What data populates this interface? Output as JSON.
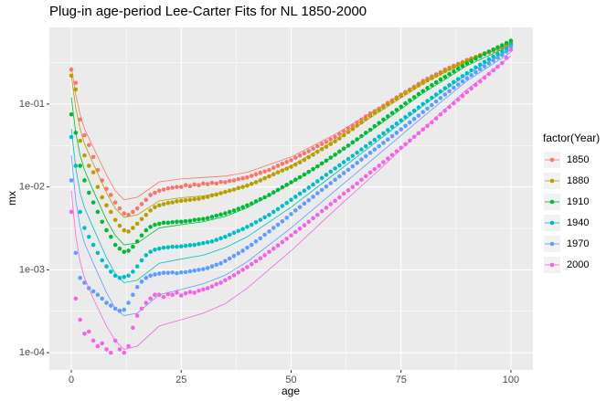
{
  "chart_data": {
    "type": "scatter",
    "title": "Plug-in age-period Lee-Carter Fits for NL 1850-2000",
    "x_label": "age",
    "y_label": "mx",
    "legend_title": "factor(Year)",
    "legend_position": "right",
    "log_y": true,
    "grid": true,
    "xlim": [
      -5,
      105
    ],
    "ylim": [
      6.2e-05,
      0.84
    ],
    "xticks": [
      0,
      25,
      50,
      75,
      100
    ],
    "yticks": [
      {
        "value": 0.0001,
        "label": "1e-04"
      },
      {
        "value": 0.001,
        "label": "1e-03"
      },
      {
        "value": 0.01,
        "label": "1e-02"
      },
      {
        "value": 0.1,
        "label": "1e-01"
      }
    ],
    "x": [
      0,
      1,
      2,
      3,
      4,
      5,
      6,
      7,
      8,
      9,
      10,
      11,
      12,
      13,
      14,
      15,
      16,
      17,
      18,
      19,
      20,
      21,
      22,
      23,
      24,
      25,
      26,
      27,
      28,
      29,
      30,
      31,
      32,
      33,
      34,
      35,
      36,
      37,
      38,
      39,
      40,
      41,
      42,
      43,
      44,
      45,
      46,
      47,
      48,
      49,
      50,
      51,
      52,
      53,
      54,
      55,
      56,
      57,
      58,
      59,
      60,
      61,
      62,
      63,
      64,
      65,
      66,
      67,
      68,
      69,
      70,
      71,
      72,
      73,
      74,
      75,
      76,
      77,
      78,
      79,
      80,
      81,
      82,
      83,
      84,
      85,
      86,
      87,
      88,
      89,
      90,
      91,
      92,
      93,
      94,
      95,
      96,
      97,
      98,
      99,
      100
    ],
    "fit_x": [
      0,
      1,
      2,
      3,
      5,
      8,
      10,
      12,
      15,
      20,
      25,
      30,
      35,
      40,
      50,
      60,
      70,
      80,
      90,
      100
    ],
    "series": [
      {
        "name": "1850",
        "color": "#F8766D",
        "values": [
          0.26,
          0.18,
          0.065,
          0.042,
          0.032,
          0.023,
          0.016,
          0.012,
          0.0095,
          0.008,
          0.0065,
          0.0055,
          0.0048,
          0.0046,
          0.005,
          0.0055,
          0.0062,
          0.007,
          0.008,
          0.0085,
          0.009,
          0.0093,
          0.0096,
          0.0098,
          0.01,
          0.01,
          0.0105,
          0.0102,
          0.0107,
          0.0105,
          0.011,
          0.0108,
          0.0112,
          0.011,
          0.0115,
          0.0114,
          0.0118,
          0.012,
          0.0124,
          0.0127,
          0.013,
          0.0136,
          0.0142,
          0.0148,
          0.0154,
          0.016,
          0.017,
          0.018,
          0.019,
          0.02,
          0.021,
          0.0225,
          0.024,
          0.0255,
          0.027,
          0.029,
          0.031,
          0.033,
          0.035,
          0.0375,
          0.04,
          0.0435,
          0.047,
          0.051,
          0.055,
          0.06,
          0.065,
          0.071,
          0.077,
          0.082,
          0.088,
          0.095,
          0.103,
          0.111,
          0.12,
          0.13,
          0.14,
          0.15,
          0.162,
          0.175,
          0.19,
          0.202,
          0.215,
          0.228,
          0.242,
          0.26,
          0.275,
          0.29,
          0.305,
          0.32,
          0.34,
          0.355,
          0.37,
          0.385,
          0.4,
          0.42,
          0.44,
          0.46,
          0.48,
          0.5,
          0.53
        ],
        "fitted": [
          0.28,
          0.13,
          0.075,
          0.05,
          0.03,
          0.014,
          0.009,
          0.007,
          0.0075,
          0.0115,
          0.0125,
          0.013,
          0.0135,
          0.015,
          0.023,
          0.043,
          0.09,
          0.19,
          0.34,
          0.53
        ]
      },
      {
        "name": "1880",
        "color": "#B79F00",
        "values": [
          0.22,
          0.15,
          0.036,
          0.024,
          0.018,
          0.015,
          0.01,
          0.0075,
          0.006,
          0.005,
          0.004,
          0.0034,
          0.003,
          0.0029,
          0.0032,
          0.0036,
          0.0041,
          0.0046,
          0.0052,
          0.0057,
          0.006,
          0.0062,
          0.0064,
          0.0065,
          0.0067,
          0.0068,
          0.0069,
          0.007,
          0.0071,
          0.0072,
          0.0074,
          0.0076,
          0.0079,
          0.0081,
          0.0084,
          0.0087,
          0.009,
          0.0093,
          0.0097,
          0.01,
          0.0104,
          0.0109,
          0.0114,
          0.012,
          0.0127,
          0.0134,
          0.0142,
          0.015,
          0.0158,
          0.0166,
          0.0175,
          0.0186,
          0.0198,
          0.0212,
          0.0228,
          0.0245,
          0.0265,
          0.0285,
          0.0305,
          0.033,
          0.0355,
          0.0385,
          0.042,
          0.046,
          0.05,
          0.055,
          0.06,
          0.066,
          0.072,
          0.078,
          0.084,
          0.091,
          0.099,
          0.107,
          0.116,
          0.125,
          0.135,
          0.146,
          0.157,
          0.168,
          0.18,
          0.193,
          0.206,
          0.22,
          0.235,
          0.25,
          0.265,
          0.28,
          0.297,
          0.315,
          0.333,
          0.35,
          0.37,
          0.39,
          0.41,
          0.43,
          0.45,
          0.47,
          0.495,
          0.52,
          0.55
        ],
        "fitted": [
          0.22,
          0.09,
          0.05,
          0.033,
          0.019,
          0.0085,
          0.0055,
          0.0043,
          0.0046,
          0.0068,
          0.0074,
          0.0078,
          0.0086,
          0.0103,
          0.018,
          0.036,
          0.08,
          0.175,
          0.33,
          0.53
        ]
      },
      {
        "name": "1910",
        "color": "#00BA38",
        "values": [
          0.075,
          0.045,
          0.018,
          0.012,
          0.0085,
          0.0065,
          0.005,
          0.0038,
          0.003,
          0.0025,
          0.002,
          0.0018,
          0.00165,
          0.0017,
          0.0019,
          0.0022,
          0.0026,
          0.003,
          0.0033,
          0.0035,
          0.0036,
          0.0037,
          0.0037,
          0.00375,
          0.0038,
          0.0038,
          0.00385,
          0.0039,
          0.004,
          0.00405,
          0.0041,
          0.0042,
          0.00435,
          0.0045,
          0.00465,
          0.0048,
          0.005,
          0.0052,
          0.00545,
          0.0057,
          0.006,
          0.0063,
          0.0067,
          0.0071,
          0.0075,
          0.008,
          0.0086,
          0.0092,
          0.0099,
          0.0106,
          0.0114,
          0.0122,
          0.0131,
          0.0141,
          0.0152,
          0.0164,
          0.0177,
          0.0192,
          0.0208,
          0.0226,
          0.0245,
          0.0267,
          0.029,
          0.0315,
          0.0345,
          0.0375,
          0.041,
          0.045,
          0.049,
          0.054,
          0.059,
          0.065,
          0.071,
          0.078,
          0.085,
          0.093,
          0.102,
          0.111,
          0.121,
          0.132,
          0.143,
          0.156,
          0.169,
          0.183,
          0.198,
          0.213,
          0.23,
          0.248,
          0.267,
          0.287,
          0.308,
          0.33,
          0.353,
          0.377,
          0.402,
          0.428,
          0.455,
          0.483,
          0.512,
          0.545,
          0.58
        ],
        "fitted": [
          0.12,
          0.045,
          0.024,
          0.016,
          0.009,
          0.004,
          0.0026,
          0.002,
          0.0021,
          0.0032,
          0.0035,
          0.0038,
          0.0044,
          0.0056,
          0.011,
          0.024,
          0.056,
          0.135,
          0.29,
          0.51
        ]
      },
      {
        "name": "1940",
        "color": "#00BFC4",
        "values": [
          0.04,
          0.018,
          0.005,
          0.0032,
          0.0025,
          0.002,
          0.0016,
          0.0013,
          0.0011,
          0.00095,
          0.00085,
          0.0008,
          0.00082,
          0.00085,
          0.00095,
          0.0011,
          0.0013,
          0.0015,
          0.00165,
          0.00175,
          0.0018,
          0.00185,
          0.00187,
          0.0019,
          0.0019,
          0.00192,
          0.00195,
          0.00198,
          0.002,
          0.00205,
          0.0021,
          0.00215,
          0.0022,
          0.0023,
          0.0024,
          0.0025,
          0.00265,
          0.0028,
          0.00295,
          0.0031,
          0.0033,
          0.0035,
          0.00375,
          0.004,
          0.0043,
          0.0046,
          0.005,
          0.0054,
          0.0059,
          0.0064,
          0.007,
          0.0076,
          0.0083,
          0.009,
          0.0098,
          0.0107,
          0.0117,
          0.0128,
          0.014,
          0.0153,
          0.0167,
          0.0182,
          0.0199,
          0.0217,
          0.0237,
          0.0259,
          0.0283,
          0.0309,
          0.0338,
          0.037,
          0.0405,
          0.0443,
          0.0485,
          0.053,
          0.058,
          0.0635,
          0.0695,
          0.076,
          0.083,
          0.091,
          0.1,
          0.109,
          0.119,
          0.13,
          0.142,
          0.155,
          0.169,
          0.184,
          0.2,
          0.217,
          0.235,
          0.255,
          0.276,
          0.298,
          0.322,
          0.347,
          0.374,
          0.403,
          0.434,
          0.467,
          0.52
        ],
        "fitted": [
          0.05,
          0.017,
          0.0085,
          0.0056,
          0.0032,
          0.0014,
          0.0009,
          0.0007,
          0.00075,
          0.0012,
          0.00135,
          0.0015,
          0.00185,
          0.0025,
          0.0057,
          0.0145,
          0.037,
          0.095,
          0.23,
          0.46
        ]
      },
      {
        "name": "1970",
        "color": "#619CFF",
        "values": [
          0.012,
          0.0016,
          0.0008,
          0.0007,
          0.0006,
          0.00055,
          0.0005,
          0.00045,
          0.0004,
          0.00037,
          0.00034,
          0.00032,
          0.00033,
          0.0004,
          0.0005,
          0.00062,
          0.00072,
          0.0008,
          0.00085,
          0.00088,
          0.0009,
          0.00092,
          0.00092,
          0.00093,
          0.00091,
          0.00093,
          0.00094,
          0.00096,
          0.00098,
          0.001,
          0.00102,
          0.00105,
          0.0011,
          0.00115,
          0.0012,
          0.00128,
          0.00137,
          0.00147,
          0.00158,
          0.0017,
          0.00185,
          0.002,
          0.0022,
          0.0024,
          0.00265,
          0.0029,
          0.0032,
          0.0035,
          0.00385,
          0.00425,
          0.0047,
          0.0052,
          0.0057,
          0.0063,
          0.0069,
          0.0076,
          0.0084,
          0.0092,
          0.0101,
          0.0111,
          0.0122,
          0.0134,
          0.0147,
          0.0161,
          0.0177,
          0.0195,
          0.0214,
          0.0235,
          0.0258,
          0.0283,
          0.031,
          0.034,
          0.0373,
          0.041,
          0.045,
          0.0495,
          0.0545,
          0.06,
          0.066,
          0.0725,
          0.08,
          0.088,
          0.097,
          0.107,
          0.118,
          0.13,
          0.143,
          0.157,
          0.172,
          0.188,
          0.205,
          0.223,
          0.242,
          0.263,
          0.285,
          0.309,
          0.335,
          0.362,
          0.392,
          0.43,
          0.49
        ],
        "fitted": [
          0.024,
          0.007,
          0.0033,
          0.0021,
          0.0012,
          0.00053,
          0.00034,
          0.00028,
          0.0003,
          0.0005,
          0.00058,
          0.00068,
          0.00086,
          0.00125,
          0.0032,
          0.009,
          0.025,
          0.07,
          0.19,
          0.42
        ]
      },
      {
        "name": "2000",
        "color": "#F564E3",
        "values": [
          0.005,
          0.00045,
          0.00025,
          0.00017,
          0.00018,
          0.00014,
          0.00012,
          0.00013,
          0.00011,
          0.0001,
          0.00014,
          0.00011,
          0.0001,
          0.00012,
          0.0002,
          0.00028,
          0.00034,
          0.0004,
          0.00045,
          0.0005,
          0.0005,
          0.00047,
          0.00051,
          0.0005,
          0.00053,
          0.00049,
          0.00052,
          0.00054,
          0.00053,
          0.00056,
          0.00058,
          0.0006,
          0.00063,
          0.00067,
          0.0007,
          0.00075,
          0.0008,
          0.00086,
          0.00093,
          0.001,
          0.00108,
          0.00117,
          0.00127,
          0.00138,
          0.0015,
          0.00165,
          0.0018,
          0.00197,
          0.00216,
          0.00237,
          0.0026,
          0.00286,
          0.00314,
          0.00345,
          0.0038,
          0.0042,
          0.0046,
          0.0051,
          0.0056,
          0.0062,
          0.0068,
          0.0075,
          0.0083,
          0.0091,
          0.01,
          0.011,
          0.0122,
          0.0135,
          0.0149,
          0.0164,
          0.018,
          0.0199,
          0.022,
          0.0243,
          0.0269,
          0.0297,
          0.0328,
          0.0363,
          0.0402,
          0.0445,
          0.0493,
          0.0545,
          0.06,
          0.067,
          0.075,
          0.083,
          0.092,
          0.102,
          0.113,
          0.125,
          0.139,
          0.154,
          0.17,
          0.188,
          0.208,
          0.23,
          0.255,
          0.282,
          0.312,
          0.36,
          0.45
        ],
        "fitted": [
          0.009,
          0.0026,
          0.00125,
          0.0008,
          0.00045,
          0.00021,
          0.00014,
          0.00011,
          0.00012,
          0.00021,
          0.00025,
          0.0003,
          0.00039,
          0.0006,
          0.0017,
          0.0053,
          0.016,
          0.05,
          0.15,
          0.38
        ]
      }
    ]
  }
}
